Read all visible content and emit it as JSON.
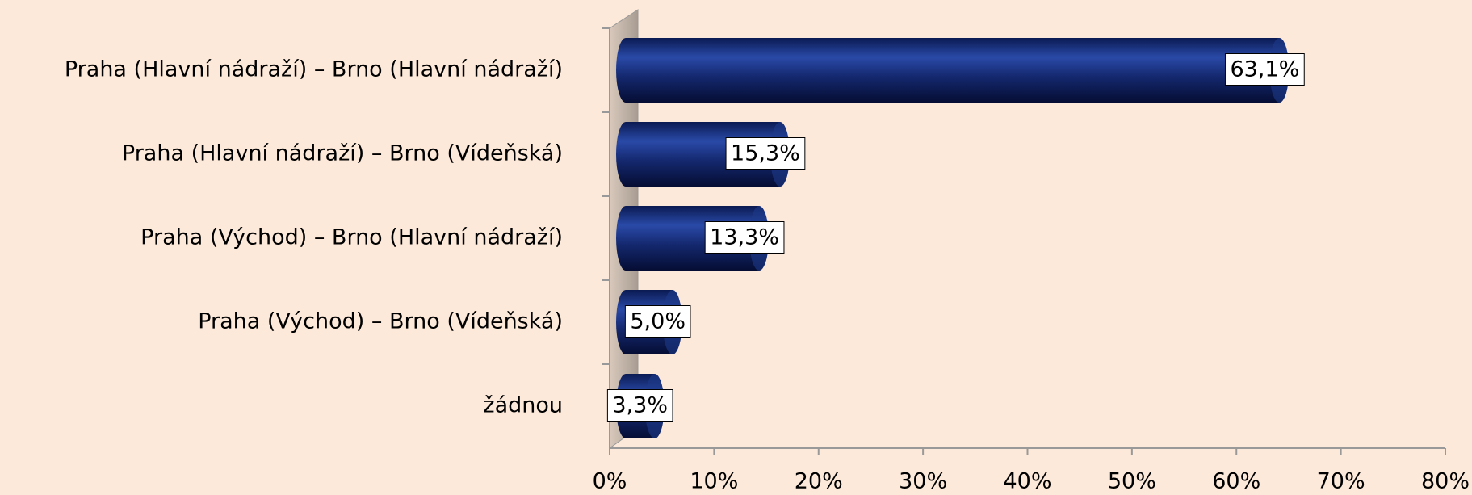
{
  "chart_data": {
    "type": "bar",
    "orientation": "horizontal",
    "categories": [
      "Praha (Hlavní nádraží) – Brno (Hlavní nádraží)",
      "Praha (Hlavní nádraží) – Brno (Vídeňská)",
      "Praha (Východ) – Brno (Hlavní nádraží)",
      "Praha (Východ) – Brno (Vídeňská)",
      "žádnou"
    ],
    "values": [
      63.1,
      15.3,
      13.3,
      5.0,
      3.3
    ],
    "value_labels": [
      "63,1%",
      "15,3%",
      "13,3%",
      "5,0%",
      "3,3%"
    ],
    "color": "#14286e",
    "xlim": [
      0,
      80
    ],
    "xticks": [
      {
        "value": 0,
        "label": "0%"
      },
      {
        "value": 10,
        "label": "10%"
      },
      {
        "value": 20,
        "label": "20%"
      },
      {
        "value": 30,
        "label": "30%"
      },
      {
        "value": 40,
        "label": "40%"
      },
      {
        "value": 50,
        "label": "50%"
      },
      {
        "value": 60,
        "label": "60%"
      },
      {
        "value": 70,
        "label": "70%"
      },
      {
        "value": 80,
        "label": "80%"
      }
    ]
  }
}
